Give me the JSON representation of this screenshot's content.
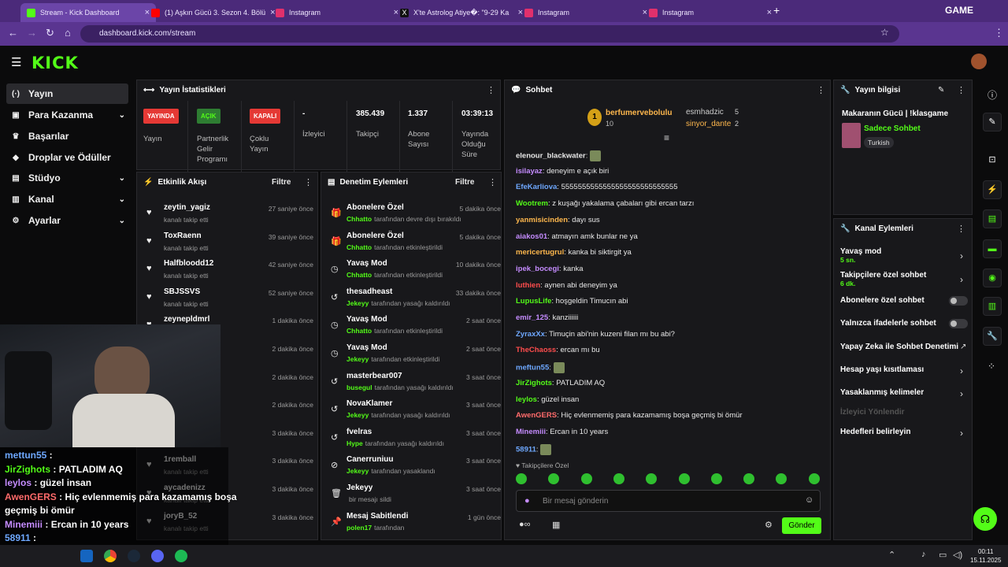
{
  "browser": {
    "tabs": [
      {
        "title": "Stream - Kick Dashboard",
        "color": "#53fc18"
      },
      {
        "title": "(1) Aşkın Gücü 3. Sezon 4. Bölü",
        "color": "#ff0000"
      },
      {
        "title": "Instagram",
        "color": "#e1306c"
      },
      {
        "title": "X'te Astrolog Atiye�: \"9-29 Ka",
        "color": "#ffffff"
      },
      {
        "title": "Instagram",
        "color": "#e1306c"
      },
      {
        "title": "Instagram",
        "color": "#e1306c"
      }
    ],
    "new_tab": "+",
    "url": "dashboard.kick.com/stream",
    "profile_text": "GAME"
  },
  "header": {
    "logo": "KICK"
  },
  "nav": [
    {
      "label": "Yayın",
      "icon": "(·)",
      "chev": ""
    },
    {
      "label": "Para Kazanma",
      "icon": "▣",
      "chev": "⌄"
    },
    {
      "label": "Başarılar",
      "icon": "♛",
      "chev": ""
    },
    {
      "label": "Droplar ve Ödüller",
      "icon": "◆",
      "chev": ""
    },
    {
      "label": "Stüdyo",
      "icon": "▤",
      "chev": "⌄"
    },
    {
      "label": "Kanal",
      "icon": "▥",
      "chev": "⌄"
    },
    {
      "label": "Ayarlar",
      "icon": "⚙",
      "chev": "⌄"
    }
  ],
  "stats": {
    "title": "Yayın İstatistikleri",
    "items": [
      {
        "badge": "YAYINDA",
        "badge_color": "#e53935",
        "label": "Yayın"
      },
      {
        "badge": "AÇIK",
        "badge_color": "#2e7d32",
        "label": "Partnerlik Gelir Programı"
      },
      {
        "badge": "KAPALI",
        "badge_color": "#e53935",
        "label": "Çoklu Yayın"
      },
      {
        "value": "-",
        "label": "İzleyici"
      },
      {
        "value": "385.439",
        "label": "Takipçi"
      },
      {
        "value": "1.337",
        "label": "Abone Sayısı"
      },
      {
        "value": "03:39:13",
        "label": "Yayında Olduğu Süre"
      }
    ]
  },
  "activity": {
    "title": "Etkinlik Akışı",
    "filter": "Filtre",
    "rows": [
      {
        "name": "zeytin_yagiz",
        "sub": "kanalı takip etti",
        "time": "27 saniye önce"
      },
      {
        "name": "ToxRaenn",
        "sub": "kanalı takip etti",
        "time": "39 saniye önce"
      },
      {
        "name": "Halfbloodd12",
        "sub": "kanalı takip etti",
        "time": "42 saniye önce"
      },
      {
        "name": "SBJSSVS",
        "sub": "kanalı takip etti",
        "time": "52 saniye önce"
      },
      {
        "name": "zeynepldmrl",
        "sub": "kanalı takip etti",
        "time": "1 dakika önce"
      },
      {
        "name": "",
        "sub": "",
        "time": "2 dakika önce"
      },
      {
        "name": "",
        "sub": "",
        "time": "2 dakika önce"
      },
      {
        "name": "",
        "sub": "",
        "time": "2 dakika önce"
      },
      {
        "name": "",
        "sub": "",
        "time": "3 dakika önce"
      },
      {
        "name": "1remball",
        "sub": "kanalı takip etti",
        "time": "3 dakika önce"
      },
      {
        "name": "aycadenizz",
        "sub": "kanalı takip etti",
        "time": "3 dakika önce"
      },
      {
        "name": "joryB_52",
        "sub": "kanalı takip etti",
        "time": "3 dakika önce"
      }
    ]
  },
  "moderation": {
    "title": "Denetim Eylemleri",
    "filter": "Filtre",
    "rows": [
      {
        "icon": "🎁",
        "name": "Abonelere Özel",
        "user": "Chhatto",
        "sub": "tarafından devre dışı bırakıldı",
        "time": "5 dakika önce"
      },
      {
        "icon": "🎁",
        "name": "Abonelere Özel",
        "user": "Chhatto",
        "sub": "tarafından etkinleştirildi",
        "time": "5 dakika önce"
      },
      {
        "icon": "◷",
        "name": "Yavaş Mod",
        "user": "Chhatto",
        "sub": "tarafından etkinleştirildi",
        "time": "10 dakika önce"
      },
      {
        "icon": "↺",
        "name": "thesadheast",
        "user": "Jekeyy",
        "sub": "tarafından yasağı kaldırıldı",
        "time": "33 dakika önce"
      },
      {
        "icon": "◷",
        "name": "Yavaş Mod",
        "user": "Chhatto",
        "sub": "tarafından etkinleştirildi",
        "time": "2 saat önce"
      },
      {
        "icon": "◷",
        "name": "Yavaş Mod",
        "user": "Jekeyy",
        "sub": "tarafından etkinleştirildi",
        "time": "2 saat önce"
      },
      {
        "icon": "↺",
        "name": "masterbear007",
        "user": "busegul",
        "sub": "tarafından yasağı kaldırıldı",
        "time": "3 saat önce"
      },
      {
        "icon": "↺",
        "name": "NovaKlamer",
        "user": "Jekeyy",
        "sub": "tarafından yasağı kaldırıldı",
        "time": "3 saat önce"
      },
      {
        "icon": "↺",
        "name": "fvelras",
        "user": "Hype",
        "sub": "tarafından yasağı kaldırıldı",
        "time": "3 saat önce"
      },
      {
        "icon": "⊘",
        "name": "Canerruniuu",
        "user": "Jekeyy",
        "sub": "tarafından yasaklandı",
        "time": "3 saat önce"
      },
      {
        "icon": "🗑",
        "name": "Jekeyy",
        "user": "",
        "sub": "bir mesajı sildi",
        "time": "3 saat önce"
      },
      {
        "icon": "📌",
        "name": "Mesaj Sabitlendi",
        "user": "polen17",
        "sub": "tarafından",
        "time": "1 gün önce"
      }
    ]
  },
  "chat": {
    "title": "Sohbet",
    "top": [
      {
        "rank": "1",
        "name": "berfumervebolulu",
        "count": "10"
      },
      {
        "name": "esmhadzic",
        "count": "5"
      },
      {
        "name": "sinyor_dante",
        "count": "2"
      }
    ],
    "messages": [
      {
        "user": "elenour_blackwater",
        "color": "#e8e8e8",
        "text": ""
      },
      {
        "user": "isilayaz",
        "color": "#c58cff",
        "text": "deneyim e açık biri"
      },
      {
        "user": "EfeKarliova",
        "color": "#6ea8ff",
        "text": "5555555555555555555555555555"
      },
      {
        "user": "Wootrem",
        "color": "#53fc18",
        "text": "z kuşağı yakalama çabaları gibi ercan tarzı"
      },
      {
        "user": "yanmisicinden",
        "color": "#ffb84d",
        "text": "dayı sus"
      },
      {
        "user": "aiakos01",
        "color": "#c58cff",
        "text": "atmayın amk bunlar ne ya"
      },
      {
        "user": "mericertugrul",
        "color": "#ffb84d",
        "text": "kanka bi siktirgit ya"
      },
      {
        "user": "ipek_bocegi",
        "color": "#c58cff",
        "text": "kanka"
      },
      {
        "user": "luthien",
        "color": "#ff4d4d",
        "text": "aynen abi deneyim ya"
      },
      {
        "user": "LupusLife",
        "color": "#53fc18",
        "text": "hoşgeldin Timucın abi"
      },
      {
        "user": "emir_125",
        "color": "#c58cff",
        "text": "kanziiiiii"
      },
      {
        "user": "ZyraxXx",
        "color": "#6ea8ff",
        "text": "Timuçin abi'nin kuzeni filan mı bu abi?"
      },
      {
        "user": "TheChaoss",
        "color": "#ff4d4d",
        "text": "ercan mı bu"
      },
      {
        "user": "meftun55",
        "color": "#6ea8ff",
        "text": ""
      },
      {
        "user": "JirZighots",
        "color": "#53fc18",
        "text": "PATLADIM AQ"
      },
      {
        "user": "leylos",
        "color": "#53fc18",
        "text": "güzel insan"
      },
      {
        "user": "AwenGERS",
        "color": "#ff6b6b",
        "text": "Hiç evlenmemiş para kazamamış boşa geçmiş bi ömür"
      },
      {
        "user": "Minemiii",
        "color": "#c58cff",
        "text": "Ercan in 10 years"
      },
      {
        "user": "58911",
        "color": "#6ea8ff",
        "text": ""
      }
    ],
    "followers_only": "Takipçilere Özel",
    "input_placeholder": "Bir mesaj gönderin",
    "send": "Gönder"
  },
  "stream_info": {
    "title": "Yayın bilgisi",
    "stream_title": "Makaranın Gücü | !klasgame",
    "category": "Sadece Sohbet",
    "tag": "Turkish"
  },
  "channel_actions": {
    "title": "Kanal Eylemleri",
    "items": [
      {
        "label": "Yavaş mod",
        "sub": "5 sn.",
        "kind": "arrow"
      },
      {
        "label": "Takipçilere özel sohbet",
        "sub": "6 dk.",
        "kind": "arrow"
      },
      {
        "label": "Abonelere özel sohbet",
        "sub": "",
        "kind": "toggle"
      },
      {
        "label": "Yalnızca ifadelerle sohbet",
        "sub": "",
        "kind": "toggle"
      },
      {
        "label": "Yapay Zeka ile Sohbet Denetimi",
        "sub": "",
        "kind": "ext"
      },
      {
        "label": "Hesap yaşı kısıtlaması",
        "sub": "",
        "kind": "arrow"
      },
      {
        "label": "Yasaklanmış kelimeler",
        "sub": "",
        "kind": "arrow"
      },
      {
        "label": "İzleyici Yönlendir",
        "sub": "",
        "kind": "disabled"
      },
      {
        "label": "Hedefleri belirleyin",
        "sub": "",
        "kind": "arrow"
      }
    ]
  },
  "overlay": {
    "lines": [
      {
        "user": "mettun55",
        "text": "",
        "color": "#6ea8ff"
      },
      {
        "user": "JirZighots",
        "text": "PATLADIM AQ",
        "color": "#53fc18"
      },
      {
        "user": "leylos",
        "text": "güzel insan",
        "color": "#c58cff"
      },
      {
        "user": "AwenGERS",
        "text": "Hiç evlenmemiş para kazamamış boşa",
        "color": "#ff6b6b"
      },
      {
        "user": "",
        "text": "geçmiş bi ömür",
        "color": "#ff6b6b"
      },
      {
        "user": "Minemiii",
        "text": "Ercan in 10 years",
        "color": "#c58cff"
      },
      {
        "user": "58911",
        "text": "",
        "color": "#6ea8ff"
      }
    ]
  },
  "taskbar": {
    "time": "00:11",
    "date": "15.11.2025"
  }
}
